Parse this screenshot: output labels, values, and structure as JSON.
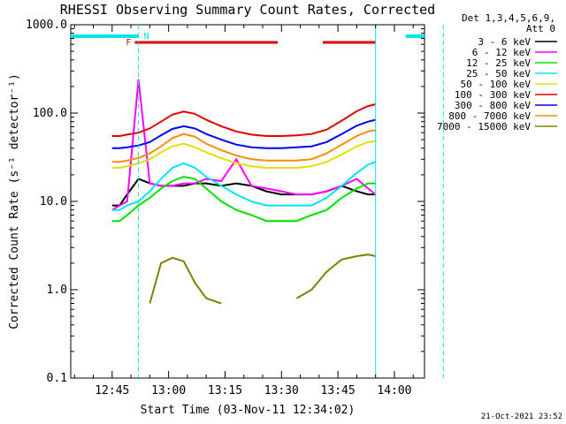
{
  "chart_data": {
    "type": "line",
    "title": "RHESSI Observing Summary Count Rates, Corrected",
    "xlabel": "Start Time (03-Nov-11 12:34:02)",
    "ylabel": "Corrected Count Rate (s⁻¹ detector⁻¹)",
    "y_scale": "log",
    "ylim": [
      0.1,
      1000.0
    ],
    "y_ticks": [
      "0.1",
      "1.0",
      "10.0",
      "100.0",
      "1000.0"
    ],
    "xlim": [
      "12:34",
      "14:08"
    ],
    "x_ticks": [
      "12:45",
      "13:00",
      "13:15",
      "13:30",
      "13:45",
      "14:00"
    ],
    "grid": false,
    "legend_header": [
      "Det 1,3,4,5,6,9,",
      "Att 0"
    ],
    "legend_position": "right",
    "flags": {
      "night": {
        "label": "N",
        "color": "#00e5ee",
        "spans": [
          [
            "12:34",
            "12:52"
          ],
          [
            "14:03",
            "14:14"
          ]
        ]
      },
      "flare": {
        "label": "F",
        "color": "#e00000",
        "spans": [
          [
            "12:51",
            "13:29"
          ],
          [
            "13:41",
            "13:55"
          ]
        ]
      },
      "boundaries": [
        "12:52",
        "13:55",
        "14:13"
      ]
    },
    "time": [
      "12:45",
      "12:47",
      "12:49",
      "12:52",
      "12:55",
      "12:58",
      "13:01",
      "13:04",
      "13:07",
      "13:10",
      "13:14",
      "13:18",
      "13:22",
      "13:26",
      "13:30",
      "13:34",
      "13:38",
      "13:42",
      "13:46",
      "13:50",
      "13:53",
      "13:55"
    ],
    "series": [
      {
        "name": "3 - 6 keV",
        "color": "#000000",
        "values": [
          9,
          9,
          12,
          18,
          16,
          15,
          15,
          15,
          16,
          16,
          15,
          16,
          15,
          13,
          12,
          12,
          12,
          13,
          15,
          13,
          12,
          12
        ]
      },
      {
        "name": "6 - 12 keV",
        "color": "#ff00ff",
        "values": [
          8,
          9,
          10,
          240,
          16,
          15,
          15,
          16,
          16,
          18,
          17,
          30,
          15,
          14,
          13,
          12,
          12,
          13,
          15,
          18,
          14,
          12
        ]
      },
      {
        "name": "12 - 25 keV",
        "color": "#00e000",
        "values": [
          6,
          6,
          7,
          9,
          11,
          14,
          17,
          19,
          18,
          14,
          10,
          8,
          7,
          6,
          6,
          6,
          7,
          8,
          11,
          14,
          16,
          16
        ]
      },
      {
        "name": "25 - 50 keV",
        "color": "#00e5ee",
        "values": [
          8,
          8,
          9,
          10,
          13,
          18,
          24,
          27,
          24,
          19,
          15,
          12,
          10,
          9,
          9,
          9,
          9,
          11,
          15,
          21,
          26,
          28
        ]
      },
      {
        "name": "50 - 100 keV",
        "color": "#e0e000",
        "values": [
          24,
          24,
          25,
          27,
          30,
          36,
          42,
          45,
          41,
          36,
          31,
          27,
          25,
          24,
          24,
          24,
          25,
          28,
          34,
          42,
          47,
          48
        ]
      },
      {
        "name": "100 - 300 keV",
        "color": "#e00000",
        "values": [
          55,
          55,
          57,
          60,
          67,
          80,
          96,
          104,
          98,
          84,
          71,
          62,
          57,
          55,
          55,
          56,
          58,
          65,
          82,
          105,
          120,
          126
        ]
      },
      {
        "name": "300 - 800 keV",
        "color": "#0000ff",
        "values": [
          40,
          40,
          41,
          43,
          47,
          56,
          66,
          71,
          67,
          58,
          50,
          44,
          41,
          40,
          40,
          41,
          42,
          47,
          58,
          72,
          80,
          84
        ]
      },
      {
        "name": "800 - 7000 keV",
        "color": "#ff8c00",
        "values": [
          28,
          28,
          29,
          31,
          35,
          42,
          52,
          58,
          54,
          45,
          38,
          33,
          30,
          29,
          29,
          29,
          30,
          35,
          44,
          55,
          62,
          64
        ]
      },
      {
        "name": "7000 - 15000 keV",
        "color": "#808000",
        "values": [
          null,
          null,
          null,
          null,
          0.7,
          2.0,
          2.3,
          2.1,
          1.2,
          0.8,
          0.7,
          null,
          null,
          null,
          null,
          0.8,
          1.0,
          1.6,
          2.2,
          2.4,
          2.5,
          2.4
        ]
      }
    ]
  },
  "timestamp": "21-Oct-2021 23:52"
}
